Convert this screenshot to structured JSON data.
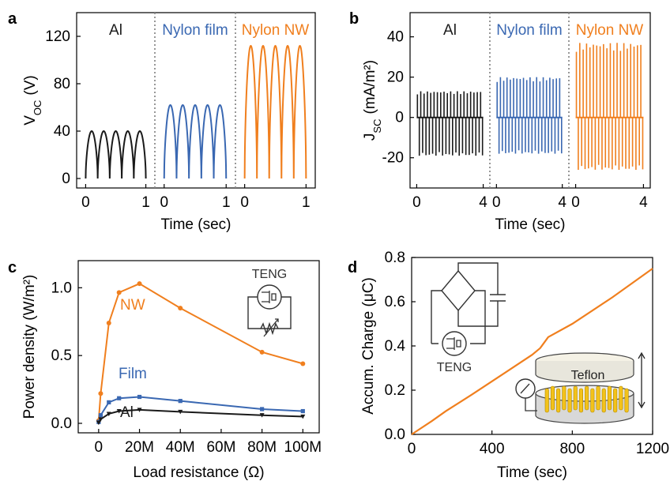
{
  "colors": {
    "al": "#1a1a1a",
    "film": "#3a68b2",
    "nw": "#f07f1e",
    "axis": "#000000",
    "divider": "#8c8c8c"
  },
  "chart_data": [
    {
      "panel": "a",
      "type": "line",
      "xlabel": "Time (sec)",
      "ylabel_main": "V",
      "ylabel_sub": "OC",
      "ylabel_unit": "(V)",
      "ylim": [
        -8,
        140
      ],
      "yticks": [
        0,
        40,
        80,
        120
      ],
      "xticks": [
        0,
        1
      ],
      "subpanels": [
        {
          "label": "Al",
          "color_key": "al",
          "xlim": [
            -0.15,
            1.15
          ],
          "cycles": 5,
          "peak": 40
        },
        {
          "label": "Nylon film",
          "color_key": "film",
          "xlim": [
            -0.15,
            1.15
          ],
          "cycles": 5,
          "peak": 62
        },
        {
          "label": "Nylon NW",
          "color_key": "nw",
          "xlim": [
            -0.15,
            1.15
          ],
          "cycles": 5,
          "peak": 112
        }
      ]
    },
    {
      "panel": "b",
      "type": "line",
      "xlabel": "Time (sec)",
      "ylabel_main": "J",
      "ylabel_sub": "SC",
      "ylabel_unit": "(mA/m²)",
      "ylim": [
        -35,
        52
      ],
      "yticks": [
        -20,
        0,
        20,
        40
      ],
      "xticks": [
        0,
        4
      ],
      "subpanels": [
        {
          "label": "Al",
          "color_key": "al",
          "xlim": [
            -0.4,
            4.4
          ],
          "pulses": 20,
          "pos": 13,
          "neg": -19
        },
        {
          "label": "Nylon film",
          "color_key": "film",
          "xlim": [
            -0.4,
            4.4
          ],
          "pulses": 20,
          "pos": 20,
          "neg": -18
        },
        {
          "label": "Nylon NW",
          "color_key": "nw",
          "xlim": [
            -0.4,
            4.4
          ],
          "pulses": 20,
          "pos": 37,
          "neg": -26
        }
      ]
    },
    {
      "panel": "c",
      "type": "line",
      "xlabel": "Load resistance (Ω)",
      "ylabel": "Power density (W/m²)",
      "xlim": [
        -10,
        108
      ],
      "ylim": [
        -0.07,
        1.2
      ],
      "xticks": [
        0,
        20,
        40,
        60,
        80,
        100
      ],
      "xticklabels": [
        "0",
        "20M",
        "40M",
        "60M",
        "80M",
        "100M"
      ],
      "yticks": [
        0.0,
        0.5,
        1.0
      ],
      "yticklabels": [
        "0.0",
        "0.5",
        "1.0"
      ],
      "x": [
        0,
        1,
        5,
        10,
        20,
        40,
        80,
        100
      ],
      "series": [
        {
          "name": "NW",
          "color_key": "nw",
          "marker": "circle",
          "values": [
            0.02,
            0.22,
            0.74,
            0.965,
            1.03,
            0.85,
            0.525,
            0.44
          ]
        },
        {
          "name": "Film",
          "color_key": "film",
          "marker": "square",
          "values": [
            0.01,
            0.06,
            0.155,
            0.185,
            0.195,
            0.165,
            0.105,
            0.09
          ]
        },
        {
          "name": "Al",
          "color_key": "al",
          "marker": "triangle",
          "values": [
            0.005,
            0.03,
            0.07,
            0.09,
            0.1,
            0.085,
            0.06,
            0.05
          ]
        }
      ],
      "inset_label": "TENG"
    },
    {
      "panel": "d",
      "type": "line",
      "xlabel": "Time (sec)",
      "ylabel": "Accum. Charge (μC)",
      "xlim": [
        0,
        1200
      ],
      "ylim": [
        0,
        0.8
      ],
      "xticks": [
        0,
        400,
        800,
        1200
      ],
      "yticks": [
        0.0,
        0.2,
        0.4,
        0.6,
        0.8
      ],
      "yticklabels": [
        "0.0",
        "0.2",
        "0.4",
        "0.6",
        "0.8"
      ],
      "x": [
        0,
        20,
        100,
        170,
        300,
        450,
        600,
        640,
        660,
        680,
        800,
        1000,
        1200
      ],
      "series": [
        {
          "color_key": "nw",
          "values": [
            0.0,
            0.012,
            0.06,
            0.105,
            0.18,
            0.27,
            0.36,
            0.39,
            0.415,
            0.44,
            0.5,
            0.62,
            0.75
          ]
        }
      ],
      "inset_labels": [
        "TENG",
        "Teflon"
      ]
    }
  ],
  "panel_labels": [
    "a",
    "b",
    "c",
    "d"
  ]
}
